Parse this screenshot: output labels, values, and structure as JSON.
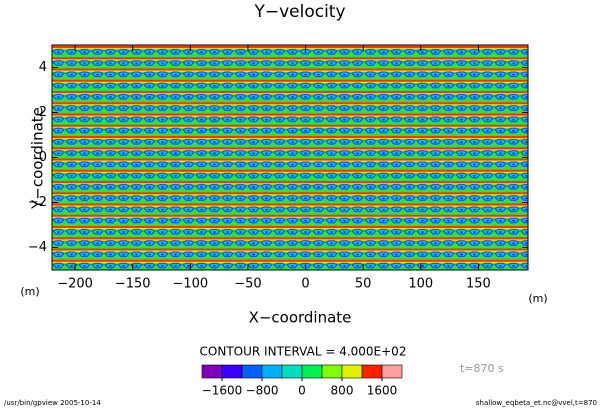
{
  "chart_data": {
    "type": "contour",
    "title": "Y−velocity",
    "xlabel": "X−coordinate",
    "ylabel": "Y−coordinate",
    "xunit": "(m)",
    "yunit": "(m)",
    "xlim": [
      -220,
      193
    ],
    "ylim": [
      -5,
      5
    ],
    "xticks": [
      {
        "value": -200,
        "label": "−200"
      },
      {
        "value": -150,
        "label": "−150"
      },
      {
        "value": -100,
        "label": "−100"
      },
      {
        "value": -50,
        "label": "−50"
      },
      0,
      50,
      100,
      150
    ],
    "yticks": [
      {
        "value": -4,
        "label": "−4"
      },
      {
        "value": -2,
        "label": "−2"
      },
      0,
      2,
      4
    ],
    "contour_interval": "CONTOUR INTERVAL = 4.000E+02",
    "colorbar": {
      "lim": [
        -2000,
        2000
      ],
      "colors": [
        "#8000c0",
        "#3a00ff",
        "#0060ff",
        "#00b0ff",
        "#00e0c0",
        "#00f050",
        "#80ff00",
        "#e0f000",
        "#ff2000",
        "#ffa0a0"
      ],
      "ticks": [
        {
          "value": -1600,
          "label": "−1600"
        },
        {
          "value": -800,
          "label": "−800"
        },
        0,
        800,
        1600
      ]
    },
    "annotation": "t=870 s",
    "footer_left": "/usr/bin/gpview  2005-10-14",
    "footer_right": "shallow_eqbeta_et.nc@vvel,t=870"
  }
}
